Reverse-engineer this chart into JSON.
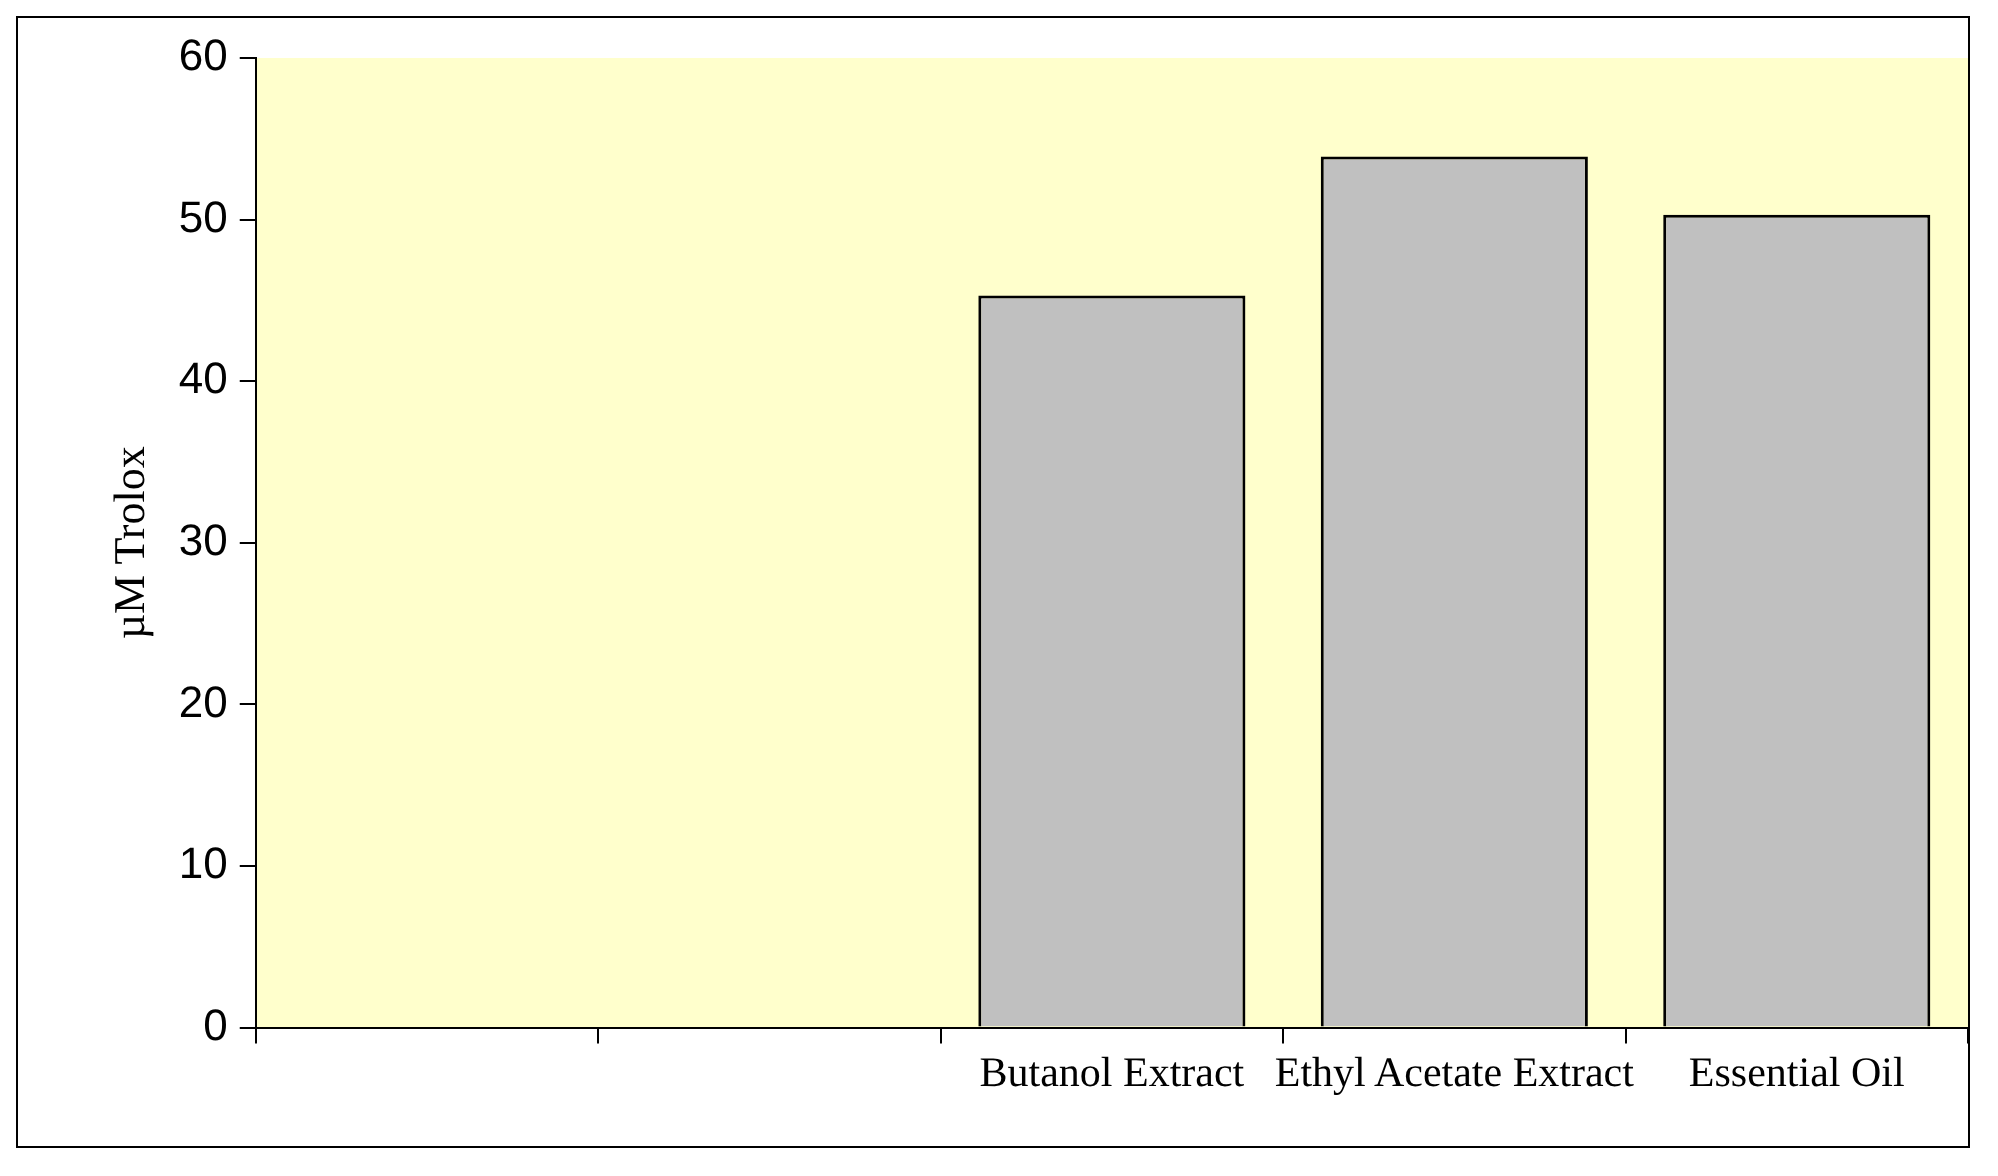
{
  "chart_data": {
    "type": "bar",
    "ylabel": "µM Trolox",
    "categories": [
      null,
      null,
      "Butanol Extract",
      "Ethyl Acetate Extract",
      "Essential Oil"
    ],
    "values": [
      null,
      null,
      45.3,
      53.9,
      50.3
    ],
    "color": "#c0c0c0",
    "ylim": [
      0,
      60
    ],
    "yticks": [
      0,
      10,
      20,
      30,
      40,
      50,
      60
    ],
    "grid": false,
    "legend": false
  }
}
